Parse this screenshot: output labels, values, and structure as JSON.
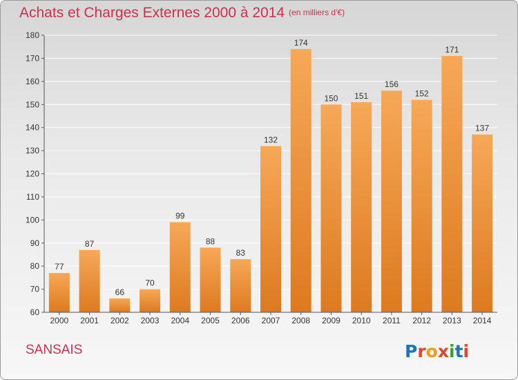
{
  "header": {
    "title": "Achats et Charges Externes 2000 à 2014",
    "subtitle": "(en milliers d'€)"
  },
  "footer": {
    "commune": "SANSAIS",
    "logo_text": "Proxiti"
  },
  "colors": {
    "title": "#c8324d",
    "bar_top": "#f6a857",
    "bar_bottom": "#dd7a1f",
    "grid": "#ffffff",
    "logo_letters": [
      "#1b75bb",
      "#e1462d",
      "#f29c1f",
      "#e1462d",
      "#3a9b3a",
      "#1b75bb",
      "#e1462d"
    ]
  },
  "chart_data": {
    "type": "bar",
    "title": "Achats et Charges Externes 2000 à 2014",
    "subtitle": "(en milliers d'€)",
    "categories": [
      "2000",
      "2001",
      "2002",
      "2003",
      "2004",
      "2005",
      "2006",
      "2007",
      "2008",
      "2009",
      "2010",
      "2011",
      "2012",
      "2013",
      "2014"
    ],
    "values": [
      77,
      87,
      66,
      70,
      99,
      88,
      83,
      132,
      174,
      150,
      151,
      156,
      152,
      171,
      137
    ],
    "ylim": [
      60,
      180
    ],
    "yticks": [
      60,
      70,
      80,
      90,
      100,
      110,
      120,
      130,
      140,
      150,
      160,
      170,
      180
    ],
    "xlabel": "",
    "ylabel": "",
    "grid": true,
    "data_labels": true
  }
}
